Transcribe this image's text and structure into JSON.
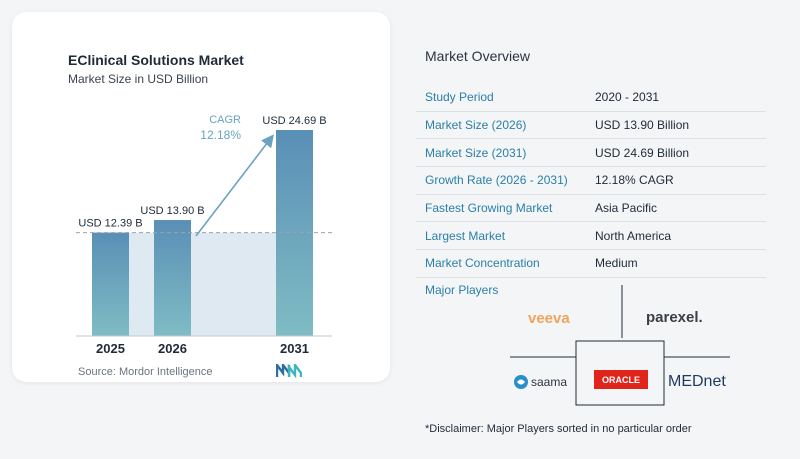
{
  "chart_data": {
    "type": "bar",
    "title": "EClinical Solutions Market",
    "subtitle": "Market Size in USD Billion",
    "categories": [
      "2025",
      "2026",
      "2031"
    ],
    "values": [
      12.39,
      13.9,
      24.69
    ],
    "data_labels": [
      "USD 12.39 B",
      "USD 13.90 B",
      "USD 24.69 B"
    ],
    "cagr_label": "CAGR",
    "cagr_value": "12.18%",
    "ylim": [
      0,
      24.69
    ],
    "grid": false,
    "colors": {
      "bar_top": "#5a8fb6",
      "bar_bottom": "#7fbcc4",
      "shade": "#dfe9f1",
      "arrow": "#6aa3c0"
    }
  },
  "source": "Source:  Mordor Intelligence",
  "overview": {
    "title": "Market Overview",
    "rows": [
      {
        "label": "Study Period",
        "value": "2020 - 2031"
      },
      {
        "label": "Market Size (2026)",
        "value": "USD 13.90 Billion"
      },
      {
        "label": "Market Size (2031)",
        "value": "USD 24.69 Billion"
      },
      {
        "label": "Growth Rate (2026 - 2031)",
        "value": "12.18% CAGR"
      },
      {
        "label": "Fastest Growing Market",
        "value": "Asia Pacific"
      },
      {
        "label": "Largest Market",
        "value": "North America"
      },
      {
        "label": "Market Concentration",
        "value": "Medium"
      }
    ]
  },
  "players": {
    "title": "Major Players",
    "logos": {
      "veeva": "veeva",
      "parexel": "parexel.",
      "saama": "saama",
      "oracle": "ORACLE",
      "mednet": "MEDnet"
    }
  },
  "disclaimer": "*Disclaimer: Major Players sorted in no particular order"
}
